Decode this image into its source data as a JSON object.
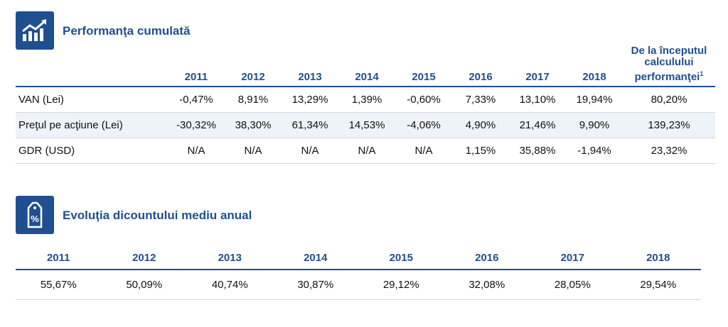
{
  "cumulative": {
    "title": "Performanţa cumulată",
    "icon": "growth-chart-icon",
    "years": [
      "2011",
      "2012",
      "2013",
      "2014",
      "2015",
      "2016",
      "2017",
      "2018"
    ],
    "since_inception_label": "De la începutul calculului performanţei",
    "since_inception_sup": "1",
    "rows": [
      {
        "label": "VAN (Lei)",
        "values": [
          "-0,47%",
          "8,91%",
          "13,29%",
          "1,39%",
          "-0,60%",
          "7,33%",
          "13,10%",
          "19,94%"
        ],
        "since": "80,20%"
      },
      {
        "label": "Preţul pe acţiune (Lei)",
        "values": [
          "-30,32%",
          "38,30%",
          "61,34%",
          "14,53%",
          "-4,06%",
          "4,90%",
          "21,46%",
          "9,90%"
        ],
        "since": "139,23%"
      },
      {
        "label": "GDR (USD)",
        "values": [
          "N/A",
          "N/A",
          "N/A",
          "N/A",
          "N/A",
          "1,15%",
          "35,88%",
          "-1,94%"
        ],
        "since": "23,32%"
      }
    ]
  },
  "discount": {
    "title": "Evoluţia dicountului mediu anual",
    "icon": "percent-tag-icon",
    "years": [
      "2011",
      "2012",
      "2013",
      "2014",
      "2015",
      "2016",
      "2017",
      "2018"
    ],
    "values": [
      "55,67%",
      "50,09%",
      "40,74%",
      "30,87%",
      "29,12%",
      "32,08%",
      "28,05%",
      "29,54%"
    ]
  },
  "colors": {
    "accent": "#1f4f8f",
    "row_shade": "#eef3f9",
    "rule": "#cfd6df"
  }
}
